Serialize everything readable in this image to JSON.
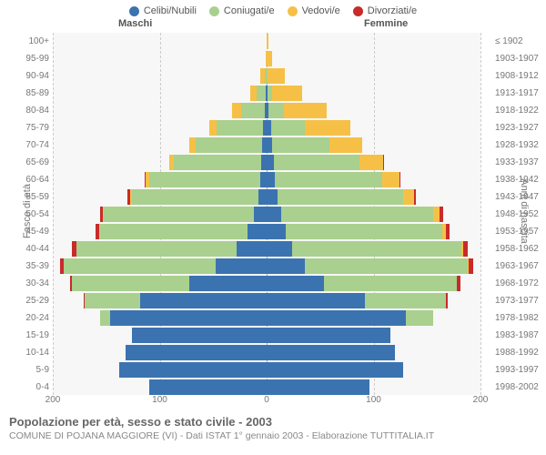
{
  "legend": [
    {
      "label": "Celibi/Nubili",
      "color": "#3b73b0"
    },
    {
      "label": "Coniugati/e",
      "color": "#a9d08e"
    },
    {
      "label": "Vedovi/e",
      "color": "#f6c047"
    },
    {
      "label": "Divorziati/e",
      "color": "#c92a2a"
    }
  ],
  "header_male": "Maschi",
  "header_female": "Femmine",
  "axis_left_title": "Fasce di età",
  "axis_right_title": "Anni di nascita",
  "title": "Popolazione per età, sesso e stato civile - 2003",
  "subtitle": "COMUNE DI POJANA MAGGIORE (VI) - Dati ISTAT 1° gennaio 2003 - Elaborazione TUTTITALIA.IT",
  "xmax": 200,
  "xticks": [
    200,
    100,
    0,
    100,
    200
  ],
  "colors": {
    "single": "#3b73b0",
    "married": "#a9d08e",
    "widowed": "#f6c047",
    "divorced": "#c92a2a",
    "plot_bg": "#f7f7f7",
    "grid": "#cccccc"
  },
  "rows": [
    {
      "age": "100+",
      "birth": "≤ 1902",
      "m": [
        0,
        0,
        0,
        0
      ],
      "f": [
        0,
        0,
        2,
        0
      ]
    },
    {
      "age": "95-99",
      "birth": "1903-1907",
      "m": [
        0,
        0,
        1,
        0
      ],
      "f": [
        0,
        0,
        5,
        0
      ]
    },
    {
      "age": "90-94",
      "birth": "1908-1912",
      "m": [
        0,
        2,
        4,
        0
      ],
      "f": [
        0,
        1,
        16,
        0
      ]
    },
    {
      "age": "85-89",
      "birth": "1913-1917",
      "m": [
        1,
        8,
        6,
        0
      ],
      "f": [
        1,
        4,
        28,
        0
      ]
    },
    {
      "age": "80-84",
      "birth": "1918-1922",
      "m": [
        2,
        22,
        8,
        0
      ],
      "f": [
        2,
        14,
        40,
        0
      ]
    },
    {
      "age": "75-79",
      "birth": "1923-1927",
      "m": [
        3,
        44,
        7,
        0
      ],
      "f": [
        4,
        32,
        42,
        0
      ]
    },
    {
      "age": "70-74",
      "birth": "1928-1932",
      "m": [
        4,
        62,
        6,
        0
      ],
      "f": [
        5,
        54,
        30,
        0
      ]
    },
    {
      "age": "65-69",
      "birth": "1933-1937",
      "m": [
        5,
        82,
        4,
        0
      ],
      "f": [
        7,
        80,
        22,
        1
      ]
    },
    {
      "age": "60-64",
      "birth": "1938-1942",
      "m": [
        6,
        104,
        3,
        1
      ],
      "f": [
        8,
        100,
        16,
        1
      ]
    },
    {
      "age": "55-59",
      "birth": "1943-1947",
      "m": [
        8,
        118,
        2,
        2
      ],
      "f": [
        10,
        118,
        10,
        2
      ]
    },
    {
      "age": "50-54",
      "birth": "1948-1952",
      "m": [
        12,
        140,
        1,
        3
      ],
      "f": [
        14,
        142,
        6,
        3
      ]
    },
    {
      "age": "45-49",
      "birth": "1953-1957",
      "m": [
        18,
        138,
        1,
        3
      ],
      "f": [
        18,
        146,
        4,
        3
      ]
    },
    {
      "age": "40-44",
      "birth": "1958-1962",
      "m": [
        28,
        150,
        0,
        4
      ],
      "f": [
        24,
        158,
        2,
        4
      ]
    },
    {
      "age": "35-39",
      "birth": "1963-1967",
      "m": [
        48,
        142,
        0,
        3
      ],
      "f": [
        36,
        152,
        1,
        4
      ]
    },
    {
      "age": "30-34",
      "birth": "1968-1972",
      "m": [
        72,
        110,
        0,
        2
      ],
      "f": [
        54,
        124,
        0,
        3
      ]
    },
    {
      "age": "25-29",
      "birth": "1973-1977",
      "m": [
        118,
        52,
        0,
        1
      ],
      "f": [
        92,
        76,
        0,
        1
      ]
    },
    {
      "age": "20-24",
      "birth": "1978-1982",
      "m": [
        146,
        10,
        0,
        0
      ],
      "f": [
        130,
        26,
        0,
        0
      ]
    },
    {
      "age": "15-19",
      "birth": "1983-1987",
      "m": [
        126,
        0,
        0,
        0
      ],
      "f": [
        116,
        0,
        0,
        0
      ]
    },
    {
      "age": "10-14",
      "birth": "1988-1992",
      "m": [
        132,
        0,
        0,
        0
      ],
      "f": [
        120,
        0,
        0,
        0
      ]
    },
    {
      "age": "5-9",
      "birth": "1993-1997",
      "m": [
        138,
        0,
        0,
        0
      ],
      "f": [
        128,
        0,
        0,
        0
      ]
    },
    {
      "age": "0-4",
      "birth": "1998-2002",
      "m": [
        110,
        0,
        0,
        0
      ],
      "f": [
        96,
        0,
        0,
        0
      ]
    }
  ]
}
